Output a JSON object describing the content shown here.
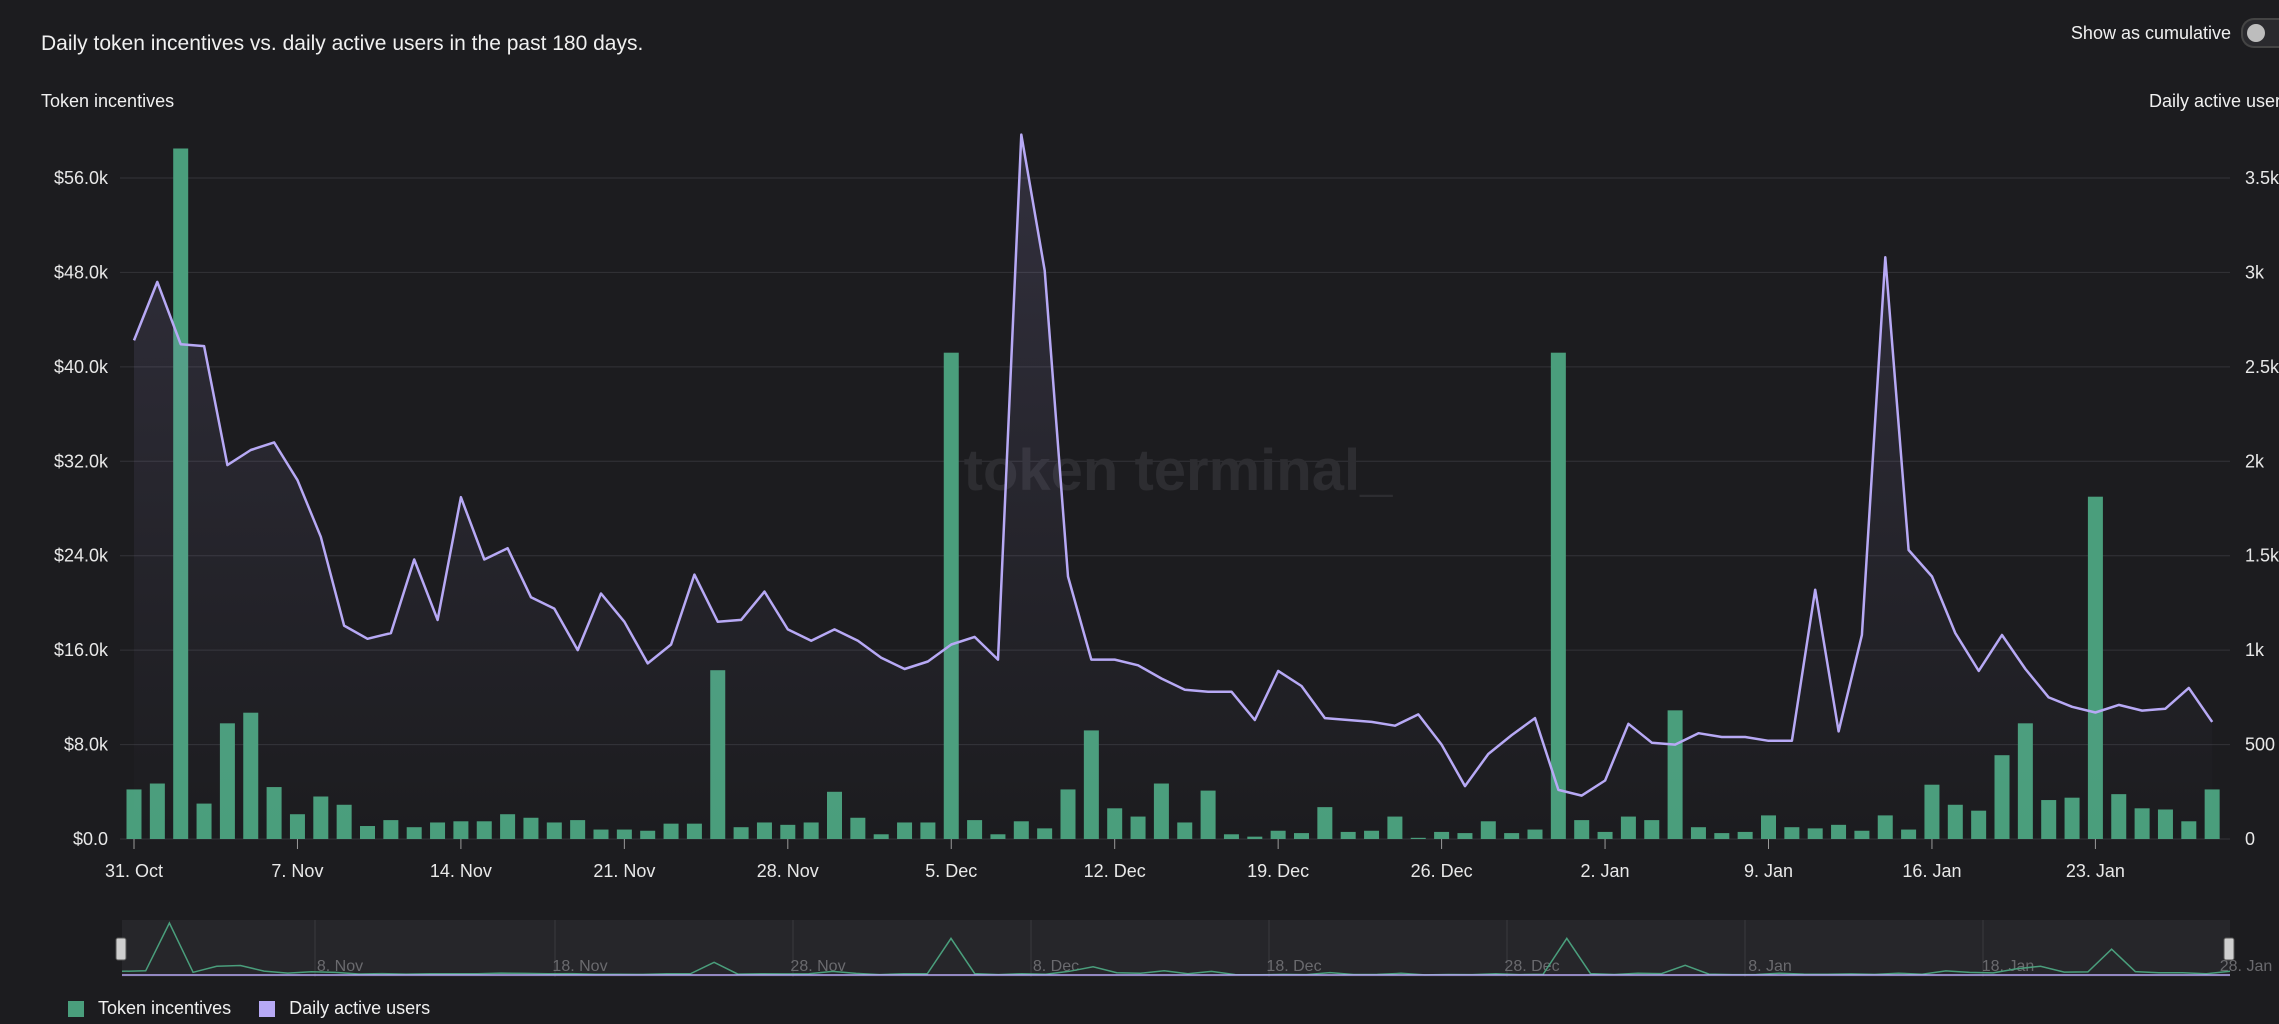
{
  "header": {
    "title": "Daily token incentives vs. daily active users in the past 180 days.",
    "toggle_label": "Show as cumulative",
    "toggle_on": false
  },
  "watermark": "token terminal_",
  "colors": {
    "incentives": "#4a9e7c",
    "users": "#b7a9f5",
    "grid": "#333338",
    "background": "#1c1c1f"
  },
  "chart_data": {
    "type": "bar",
    "ylabel": "Token incentives",
    "y2label": "Daily active users",
    "ylim": [
      0,
      56000
    ],
    "y2lim": [
      0,
      3500
    ],
    "yticks": [
      "$0.0",
      "$8.0k",
      "$16.0k",
      "$24.0k",
      "$32.0k",
      "$40.0k",
      "$48.0k",
      "$56.0k"
    ],
    "y2ticks": [
      "0",
      "500",
      "1k",
      "1.5k",
      "2k",
      "2.5k",
      "3k",
      "3.5k"
    ],
    "xticks": [
      "31. Oct",
      "7. Nov",
      "14. Nov",
      "21. Nov",
      "28. Nov",
      "5. Dec",
      "12. Dec",
      "19. Dec",
      "26. Dec",
      "2. Jan",
      "9. Jan",
      "16. Jan",
      "23. Jan"
    ],
    "grid": true,
    "legend_position": "bottom-left",
    "x": [
      "2023-10-31",
      "2023-11-01",
      "2023-11-02",
      "2023-11-03",
      "2023-11-04",
      "2023-11-05",
      "2023-11-06",
      "2023-11-07",
      "2023-11-08",
      "2023-11-09",
      "2023-11-10",
      "2023-11-11",
      "2023-11-12",
      "2023-11-13",
      "2023-11-14",
      "2023-11-15",
      "2023-11-16",
      "2023-11-17",
      "2023-11-18",
      "2023-11-19",
      "2023-11-20",
      "2023-11-21",
      "2023-11-22",
      "2023-11-23",
      "2023-11-24",
      "2023-11-25",
      "2023-11-26",
      "2023-11-27",
      "2023-11-28",
      "2023-11-29",
      "2023-11-30",
      "2023-12-01",
      "2023-12-02",
      "2023-12-03",
      "2023-12-04",
      "2023-12-05",
      "2023-12-06",
      "2023-12-07",
      "2023-12-08",
      "2023-12-09",
      "2023-12-10",
      "2023-12-11",
      "2023-12-12",
      "2023-12-13",
      "2023-12-14",
      "2023-12-15",
      "2023-12-16",
      "2023-12-17",
      "2023-12-18",
      "2023-12-19",
      "2023-12-20",
      "2023-12-21",
      "2023-12-22",
      "2023-12-23",
      "2023-12-24",
      "2023-12-25",
      "2023-12-26",
      "2023-12-27",
      "2023-12-28",
      "2023-12-29",
      "2023-12-30",
      "2023-12-31",
      "2024-01-01",
      "2024-01-02",
      "2024-01-03",
      "2024-01-04",
      "2024-01-05",
      "2024-01-06",
      "2024-01-07",
      "2024-01-08",
      "2024-01-09",
      "2024-01-10",
      "2024-01-11",
      "2024-01-12",
      "2024-01-13",
      "2024-01-14",
      "2024-01-15",
      "2024-01-16",
      "2024-01-17",
      "2024-01-18",
      "2024-01-19",
      "2024-01-20",
      "2024-01-21",
      "2024-01-22",
      "2024-01-23",
      "2024-01-24",
      "2024-01-25",
      "2024-01-26",
      "2024-01-27",
      "2024-01-28"
    ],
    "series": [
      {
        "name": "Token incentives",
        "kind": "bar",
        "axis": "left",
        "values": [
          4200,
          4700,
          58500,
          3000,
          9800,
          10700,
          4400,
          2100,
          3600,
          2900,
          1100,
          1600,
          1000,
          1400,
          1500,
          1500,
          2100,
          1800,
          1400,
          1600,
          800,
          800,
          700,
          1300,
          1300,
          14300,
          1000,
          1400,
          1200,
          1400,
          4000,
          1800,
          400,
          1400,
          1400,
          41200,
          1600,
          400,
          1500,
          900,
          4200,
          9200,
          2600,
          1900,
          4700,
          1400,
          4100,
          400,
          200,
          700,
          500,
          2700,
          600,
          700,
          1900,
          100,
          600,
          500,
          1500,
          500,
          800,
          41200,
          1600,
          600,
          1900,
          1600,
          10900,
          1000,
          500,
          600,
          2000,
          1000,
          900,
          1200,
          700,
          2000,
          800,
          4600,
          2900,
          2400,
          7100,
          9800,
          3300,
          3500,
          29000,
          3800,
          2600,
          2500,
          1500,
          4200
        ]
      },
      {
        "name": "Daily active users",
        "kind": "line",
        "axis": "right",
        "values": [
          2640,
          2950,
          2620,
          2610,
          1980,
          2060,
          2100,
          1900,
          1600,
          1130,
          1060,
          1090,
          1480,
          1160,
          1810,
          1480,
          1540,
          1280,
          1220,
          1000,
          1300,
          1150,
          930,
          1030,
          1400,
          1150,
          1160,
          1310,
          1110,
          1050,
          1110,
          1050,
          960,
          900,
          940,
          1030,
          1070,
          950,
          3730,
          3010,
          1390,
          950,
          950,
          920,
          850,
          790,
          780,
          780,
          630,
          890,
          810,
          640,
          630,
          620,
          600,
          660,
          500,
          280,
          450,
          550,
          640,
          260,
          230,
          310,
          610,
          510,
          500,
          560,
          540,
          540,
          520,
          520,
          1320,
          570,
          1080,
          3080,
          1530,
          1390,
          1090,
          890,
          1080,
          900,
          750,
          700,
          670,
          710,
          680,
          690,
          800,
          620
        ]
      }
    ]
  },
  "navigator": {
    "labels": [
      "8. Nov",
      "18. Nov",
      "28. Nov",
      "8. Dec",
      "18. Dec",
      "28. Dec",
      "8. Jan",
      "18. Jan",
      "28. Jan"
    ]
  },
  "legend": {
    "items": [
      {
        "label": "Token incentives",
        "color": "#4a9e7c"
      },
      {
        "label": "Daily active users",
        "color": "#b7a9f5"
      }
    ]
  }
}
